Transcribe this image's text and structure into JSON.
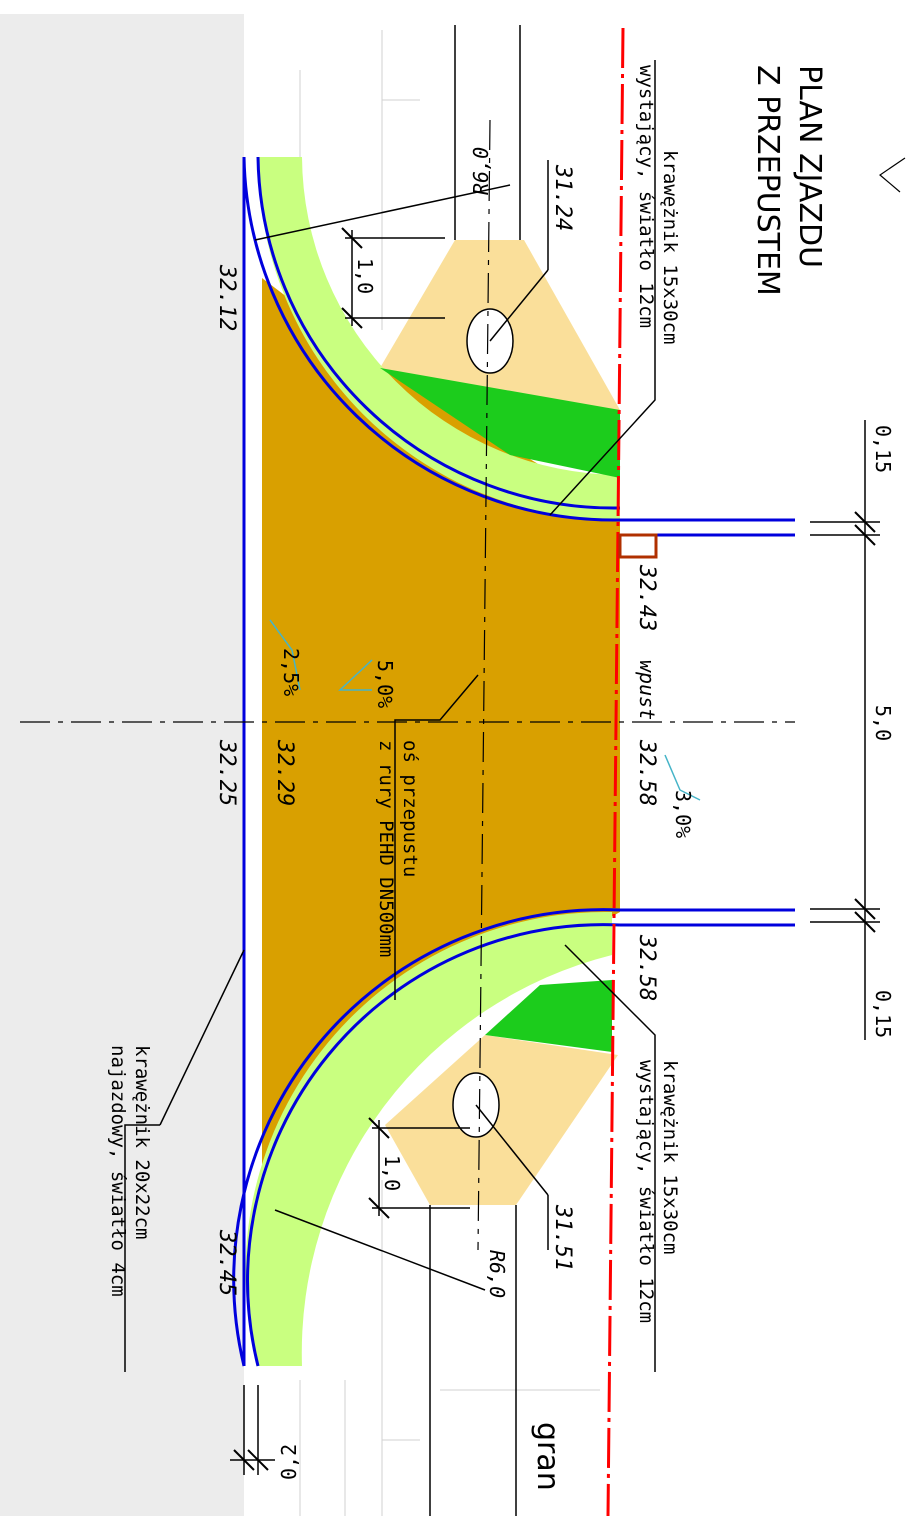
{
  "drawing": {
    "title_line1": "PLAN ZJAZDU",
    "title_line2": "Z PRZEPUSTEM",
    "curb_top_line1": "krawężnik 15x30cm",
    "curb_top_line2": "wystający, światło 12cm",
    "curb_bottom_line1": "krawężnik 15x30cm",
    "curb_bottom_line2": "wystający, światło 12cm",
    "curb_road_line1": "krawężnik 20x22cm",
    "curb_road_line2": "najazdowy, światło 4cm",
    "culvert_line1": "oś przepustu",
    "culvert_line2": "z rury PEHD DN500mm",
    "inlet_label": "wpust",
    "boundary_label": "gran",
    "radius_top": "R6,0",
    "radius_bottom": "R6,0",
    "offset_top": "1,0",
    "offset_bottom": "1,0",
    "dim_top": "0,15",
    "dim_mid": "5,0",
    "dim_bottom": "0,15",
    "dim_curb": "0,2",
    "slope_main": "5,0%",
    "slope_road": "2,5%",
    "slope_edge": "3,0%",
    "elev_3112": "32.12",
    "elev_3225": "32.25",
    "elev_3245": "32.45",
    "elev_3229": "32.29",
    "elev_3243": "32.43",
    "elev_3258a": "32.58",
    "elev_3258b": "32.58",
    "elev_3124": "31.24",
    "elev_3151": "31.51"
  },
  "colors": {
    "road_gray": "#ececec",
    "paving": "#d9a000",
    "paving_light": "#fadf9a",
    "grass": "#c9ff80",
    "green": "#1ccc1c",
    "curb_blue": "#0000dd",
    "boundary_red": "#ff0000",
    "inlet_brown": "#b03000",
    "leader_cyan": "#46b4c8"
  }
}
